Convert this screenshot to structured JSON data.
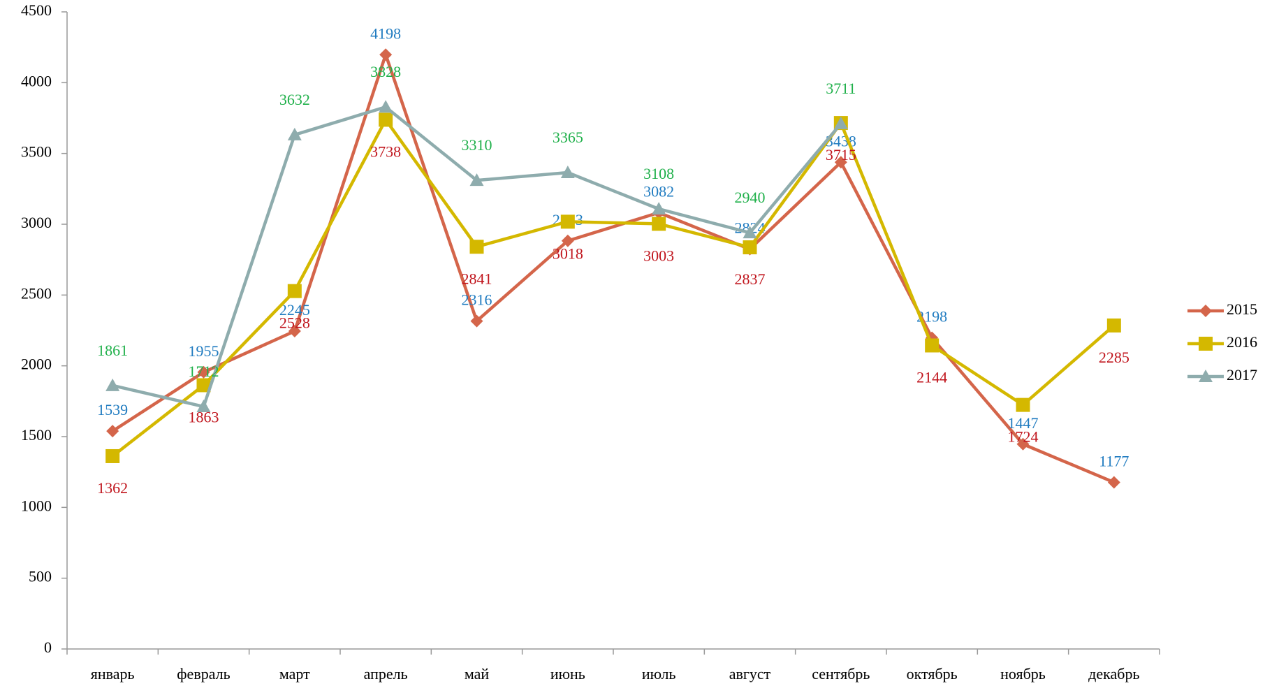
{
  "chart_data": {
    "type": "line",
    "categories": [
      "январь",
      "февраль",
      "март",
      "апрель",
      "май",
      "июнь",
      "июль",
      "август",
      "сентябрь",
      "октябрь",
      "ноябрь",
      "декабрь"
    ],
    "series": [
      {
        "name": "2015",
        "color": "#d4654a",
        "marker": "diamond",
        "label_color": "#1f7bc0",
        "values": [
          1539,
          1955,
          2245,
          4198,
          2316,
          2883,
          3082,
          2824,
          3438,
          2198,
          1447,
          1177
        ]
      },
      {
        "name": "2016",
        "color": "#d4b800",
        "marker": "square",
        "label_color": "#c0141c",
        "values": [
          1362,
          1863,
          2528,
          3738,
          2841,
          3018,
          3003,
          2837,
          3715,
          2144,
          1724,
          2285
        ]
      },
      {
        "name": "2017",
        "color": "#8eacad",
        "marker": "triangle",
        "label_color": "#1fb04a",
        "values": [
          1861,
          1712,
          3632,
          3828,
          3310,
          3365,
          3108,
          2940,
          3711,
          null,
          null,
          null
        ]
      }
    ],
    "ylim": [
      0,
      4500
    ],
    "yticks": [
      0,
      500,
      1000,
      1500,
      2000,
      2500,
      3000,
      3500,
      4000,
      4500
    ],
    "grid": false,
    "legend": "right"
  }
}
